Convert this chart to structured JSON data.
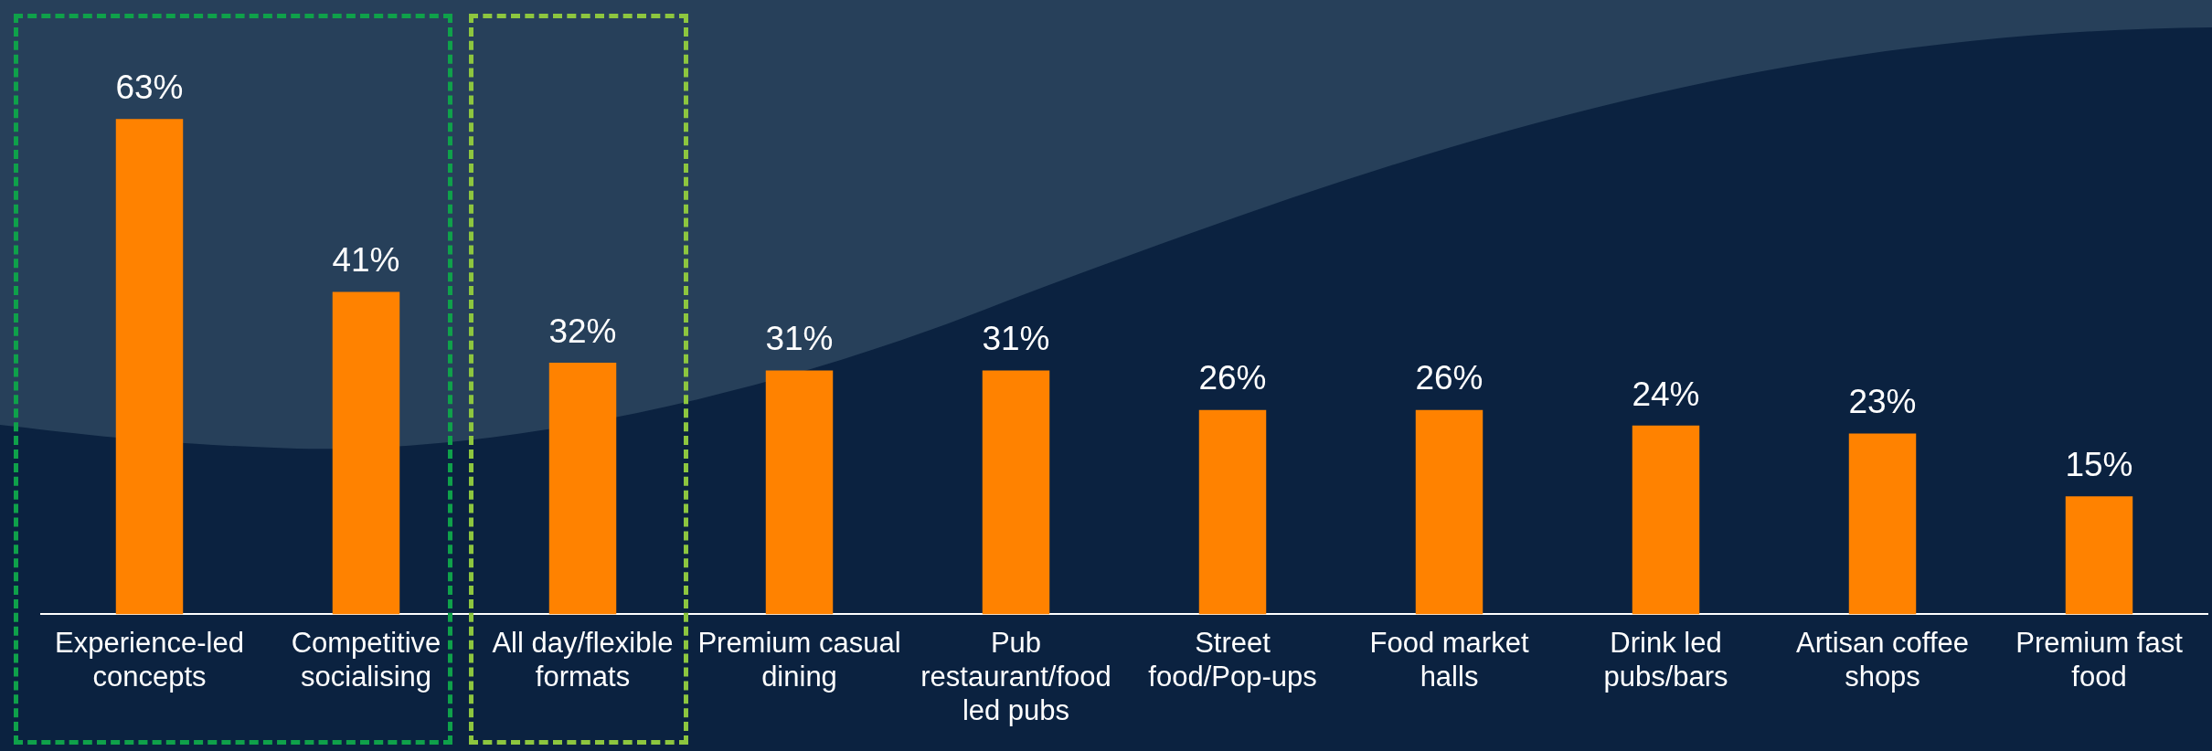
{
  "chart_data": {
    "type": "bar",
    "categories": [
      "Experience-led concepts",
      "Competitive socialising",
      "All day/flexible formats",
      "Premium casual dining",
      "Pub restaurant/food led pubs",
      "Street food/Pop-ups",
      "Food market halls",
      "Drink led pubs/bars",
      "Artisan coffee shops",
      "Premium fast food"
    ],
    "values": [
      63,
      41,
      32,
      31,
      31,
      26,
      26,
      24,
      23,
      15
    ],
    "color": "#ff8200",
    "value_labels": [
      "63%",
      "41%",
      "32%",
      "31%",
      "31%",
      "26%",
      "26%",
      "24%",
      "23%",
      "15%"
    ],
    "grid": false,
    "legend": false,
    "tick_labels": "x"
  }
}
